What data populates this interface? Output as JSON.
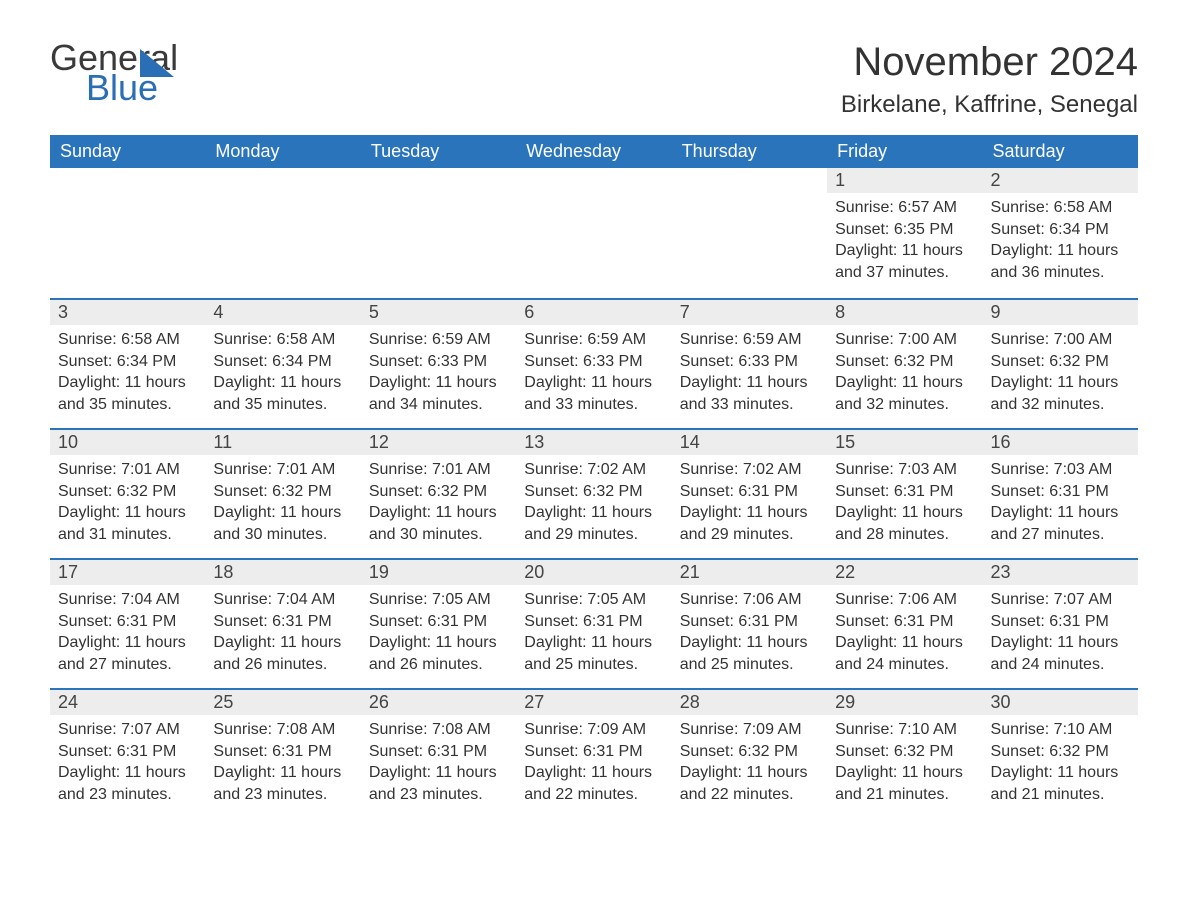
{
  "brand": {
    "word1": "General",
    "word2": "Blue"
  },
  "title": "November 2024",
  "location": "Birkelane, Kaffrine, Senegal",
  "colors": {
    "header_bg": "#2a74bb",
    "header_text": "#ffffff",
    "daynum_bg": "#ededed",
    "daynum_border": "#2a74bb",
    "text": "#333333",
    "logo_dark": "#3a3a3a",
    "logo_blue": "#2a6eb5",
    "background": "#ffffff"
  },
  "typography": {
    "title_fontsize": 40,
    "location_fontsize": 24,
    "header_fontsize": 18,
    "daynum_fontsize": 18,
    "detail_fontsize": 16
  },
  "weekdays": [
    "Sunday",
    "Monday",
    "Tuesday",
    "Wednesday",
    "Thursday",
    "Friday",
    "Saturday"
  ],
  "weeks": [
    [
      {
        "day": "",
        "sunrise": "",
        "sunset": "",
        "daylight": ""
      },
      {
        "day": "",
        "sunrise": "",
        "sunset": "",
        "daylight": ""
      },
      {
        "day": "",
        "sunrise": "",
        "sunset": "",
        "daylight": ""
      },
      {
        "day": "",
        "sunrise": "",
        "sunset": "",
        "daylight": ""
      },
      {
        "day": "",
        "sunrise": "",
        "sunset": "",
        "daylight": ""
      },
      {
        "day": "1",
        "sunrise": "Sunrise: 6:57 AM",
        "sunset": "Sunset: 6:35 PM",
        "daylight": "Daylight: 11 hours and 37 minutes."
      },
      {
        "day": "2",
        "sunrise": "Sunrise: 6:58 AM",
        "sunset": "Sunset: 6:34 PM",
        "daylight": "Daylight: 11 hours and 36 minutes."
      }
    ],
    [
      {
        "day": "3",
        "sunrise": "Sunrise: 6:58 AM",
        "sunset": "Sunset: 6:34 PM",
        "daylight": "Daylight: 11 hours and 35 minutes."
      },
      {
        "day": "4",
        "sunrise": "Sunrise: 6:58 AM",
        "sunset": "Sunset: 6:34 PM",
        "daylight": "Daylight: 11 hours and 35 minutes."
      },
      {
        "day": "5",
        "sunrise": "Sunrise: 6:59 AM",
        "sunset": "Sunset: 6:33 PM",
        "daylight": "Daylight: 11 hours and 34 minutes."
      },
      {
        "day": "6",
        "sunrise": "Sunrise: 6:59 AM",
        "sunset": "Sunset: 6:33 PM",
        "daylight": "Daylight: 11 hours and 33 minutes."
      },
      {
        "day": "7",
        "sunrise": "Sunrise: 6:59 AM",
        "sunset": "Sunset: 6:33 PM",
        "daylight": "Daylight: 11 hours and 33 minutes."
      },
      {
        "day": "8",
        "sunrise": "Sunrise: 7:00 AM",
        "sunset": "Sunset: 6:32 PM",
        "daylight": "Daylight: 11 hours and 32 minutes."
      },
      {
        "day": "9",
        "sunrise": "Sunrise: 7:00 AM",
        "sunset": "Sunset: 6:32 PM",
        "daylight": "Daylight: 11 hours and 32 minutes."
      }
    ],
    [
      {
        "day": "10",
        "sunrise": "Sunrise: 7:01 AM",
        "sunset": "Sunset: 6:32 PM",
        "daylight": "Daylight: 11 hours and 31 minutes."
      },
      {
        "day": "11",
        "sunrise": "Sunrise: 7:01 AM",
        "sunset": "Sunset: 6:32 PM",
        "daylight": "Daylight: 11 hours and 30 minutes."
      },
      {
        "day": "12",
        "sunrise": "Sunrise: 7:01 AM",
        "sunset": "Sunset: 6:32 PM",
        "daylight": "Daylight: 11 hours and 30 minutes."
      },
      {
        "day": "13",
        "sunrise": "Sunrise: 7:02 AM",
        "sunset": "Sunset: 6:32 PM",
        "daylight": "Daylight: 11 hours and 29 minutes."
      },
      {
        "day": "14",
        "sunrise": "Sunrise: 7:02 AM",
        "sunset": "Sunset: 6:31 PM",
        "daylight": "Daylight: 11 hours and 29 minutes."
      },
      {
        "day": "15",
        "sunrise": "Sunrise: 7:03 AM",
        "sunset": "Sunset: 6:31 PM",
        "daylight": "Daylight: 11 hours and 28 minutes."
      },
      {
        "day": "16",
        "sunrise": "Sunrise: 7:03 AM",
        "sunset": "Sunset: 6:31 PM",
        "daylight": "Daylight: 11 hours and 27 minutes."
      }
    ],
    [
      {
        "day": "17",
        "sunrise": "Sunrise: 7:04 AM",
        "sunset": "Sunset: 6:31 PM",
        "daylight": "Daylight: 11 hours and 27 minutes."
      },
      {
        "day": "18",
        "sunrise": "Sunrise: 7:04 AM",
        "sunset": "Sunset: 6:31 PM",
        "daylight": "Daylight: 11 hours and 26 minutes."
      },
      {
        "day": "19",
        "sunrise": "Sunrise: 7:05 AM",
        "sunset": "Sunset: 6:31 PM",
        "daylight": "Daylight: 11 hours and 26 minutes."
      },
      {
        "day": "20",
        "sunrise": "Sunrise: 7:05 AM",
        "sunset": "Sunset: 6:31 PM",
        "daylight": "Daylight: 11 hours and 25 minutes."
      },
      {
        "day": "21",
        "sunrise": "Sunrise: 7:06 AM",
        "sunset": "Sunset: 6:31 PM",
        "daylight": "Daylight: 11 hours and 25 minutes."
      },
      {
        "day": "22",
        "sunrise": "Sunrise: 7:06 AM",
        "sunset": "Sunset: 6:31 PM",
        "daylight": "Daylight: 11 hours and 24 minutes."
      },
      {
        "day": "23",
        "sunrise": "Sunrise: 7:07 AM",
        "sunset": "Sunset: 6:31 PM",
        "daylight": "Daylight: 11 hours and 24 minutes."
      }
    ],
    [
      {
        "day": "24",
        "sunrise": "Sunrise: 7:07 AM",
        "sunset": "Sunset: 6:31 PM",
        "daylight": "Daylight: 11 hours and 23 minutes."
      },
      {
        "day": "25",
        "sunrise": "Sunrise: 7:08 AM",
        "sunset": "Sunset: 6:31 PM",
        "daylight": "Daylight: 11 hours and 23 minutes."
      },
      {
        "day": "26",
        "sunrise": "Sunrise: 7:08 AM",
        "sunset": "Sunset: 6:31 PM",
        "daylight": "Daylight: 11 hours and 23 minutes."
      },
      {
        "day": "27",
        "sunrise": "Sunrise: 7:09 AM",
        "sunset": "Sunset: 6:31 PM",
        "daylight": "Daylight: 11 hours and 22 minutes."
      },
      {
        "day": "28",
        "sunrise": "Sunrise: 7:09 AM",
        "sunset": "Sunset: 6:32 PM",
        "daylight": "Daylight: 11 hours and 22 minutes."
      },
      {
        "day": "29",
        "sunrise": "Sunrise: 7:10 AM",
        "sunset": "Sunset: 6:32 PM",
        "daylight": "Daylight: 11 hours and 21 minutes."
      },
      {
        "day": "30",
        "sunrise": "Sunrise: 7:10 AM",
        "sunset": "Sunset: 6:32 PM",
        "daylight": "Daylight: 11 hours and 21 minutes."
      }
    ]
  ]
}
